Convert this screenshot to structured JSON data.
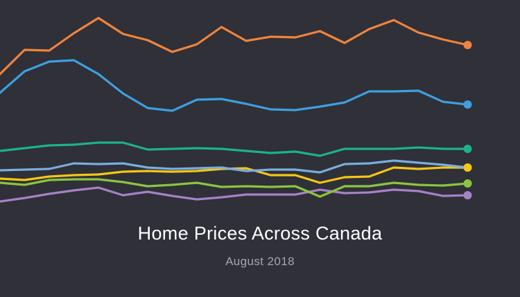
{
  "header": {
    "title": "Home Prices Across Canada",
    "subtitle": "August 2018"
  },
  "chart_data": {
    "type": "line",
    "title": "Home Prices Across Canada",
    "subtitle": "August 2018",
    "xlabel": "",
    "ylabel": "",
    "grid": false,
    "legend": "none",
    "ylim": [
      0,
      429
    ],
    "x": [
      0,
      1,
      2,
      3,
      4,
      5,
      6,
      7,
      8,
      9,
      10,
      11,
      12,
      13,
      14,
      15,
      16,
      17,
      18,
      19
    ],
    "series": [
      {
        "color": "#f0843c",
        "end_marker": true,
        "values": [
          322,
          357,
          356,
          381,
          403,
          380,
          371,
          354,
          365,
          390,
          370,
          376,
          375,
          384,
          367,
          387,
          400,
          382,
          372,
          364
        ]
      },
      {
        "color": "#3e9fe0",
        "end_marker": true,
        "values": [
          295,
          326,
          340,
          342,
          322,
          294,
          273,
          269,
          285,
          286,
          279,
          271,
          270,
          275,
          281,
          297,
          297,
          298,
          282,
          278
        ]
      },
      {
        "color": "#1bb38a",
        "end_marker": true,
        "values": [
          211,
          215,
          219,
          220,
          223,
          223,
          213,
          214,
          215,
          214,
          211,
          208,
          210,
          204,
          214,
          214,
          214,
          216,
          214,
          214
        ]
      },
      {
        "color": "#7aaee0",
        "end_marker": true,
        "values": [
          183,
          184,
          185,
          193,
          192,
          193,
          187,
          185,
          186,
          187,
          182,
          184,
          184,
          180,
          192,
          193,
          197,
          194,
          191,
          187
        ]
      },
      {
        "color": "#f7c617",
        "end_marker": true,
        "values": [
          171,
          169,
          174,
          176,
          177,
          181,
          182,
          181,
          182,
          185,
          186,
          176,
          176,
          165,
          173,
          174,
          187,
          185,
          187,
          187
        ]
      },
      {
        "color": "#8cc540",
        "end_marker": true,
        "values": [
          165,
          162,
          169,
          170,
          170,
          166,
          160,
          162,
          165,
          159,
          160,
          159,
          160,
          145,
          160,
          160,
          165,
          162,
          161,
          164
        ]
      },
      {
        "color": "#a582c7",
        "end_marker": true,
        "values": [
          138,
          143,
          149,
          154,
          158,
          147,
          152,
          146,
          141,
          144,
          148,
          148,
          148,
          155,
          150,
          151,
          155,
          153,
          146,
          147
        ]
      }
    ]
  }
}
